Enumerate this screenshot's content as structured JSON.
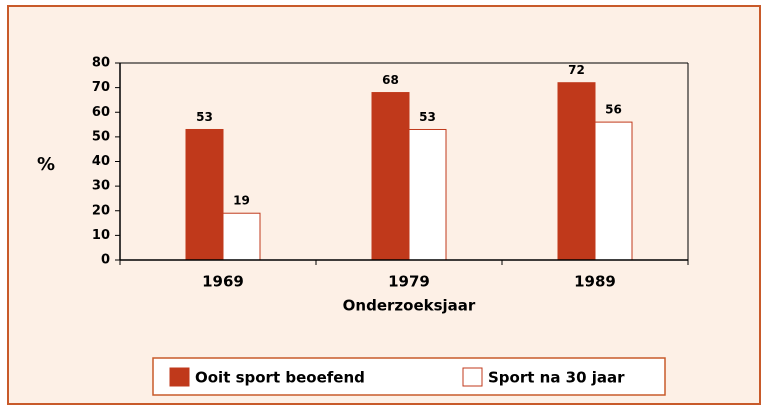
{
  "chart_data": {
    "type": "bar",
    "ylabel": "%",
    "xlabel": "Onderzoeksjaar",
    "categories": [
      "1969",
      "1979",
      "1989"
    ],
    "series": [
      {
        "name": "Ooit sport beoefend",
        "color": "#c0391b",
        "values": [
          53,
          68,
          72
        ]
      },
      {
        "name": "Sport na 30 jaar",
        "color": "#ffffff",
        "values": [
          19,
          53,
          56
        ]
      }
    ],
    "ylim": [
      0,
      80
    ],
    "yticks": [
      0,
      10,
      20,
      30,
      40,
      50,
      60,
      70,
      80
    ],
    "legend": "bottom"
  }
}
